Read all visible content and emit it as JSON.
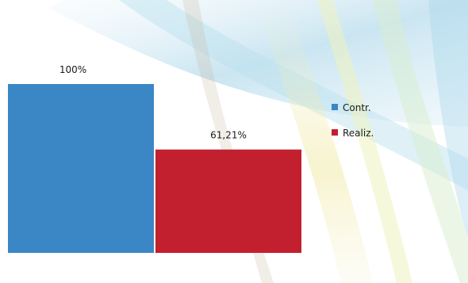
{
  "chart_data": {
    "type": "bar",
    "categories": [
      "Contr.",
      "Realiz."
    ],
    "values": [
      100,
      61.21
    ],
    "data_labels": [
      "100%",
      "61,21%"
    ],
    "ylim": [
      0,
      100
    ],
    "title": "",
    "xlabel": "",
    "ylabel": "",
    "grid": false,
    "legend_position": "right",
    "colors": [
      "#3b86c5",
      "#c2202f"
    ]
  },
  "legend": {
    "items": [
      {
        "label": "Contr.",
        "color": "#3b86c5"
      },
      {
        "label": "Realiz.",
        "color": "#c2202f"
      }
    ]
  }
}
